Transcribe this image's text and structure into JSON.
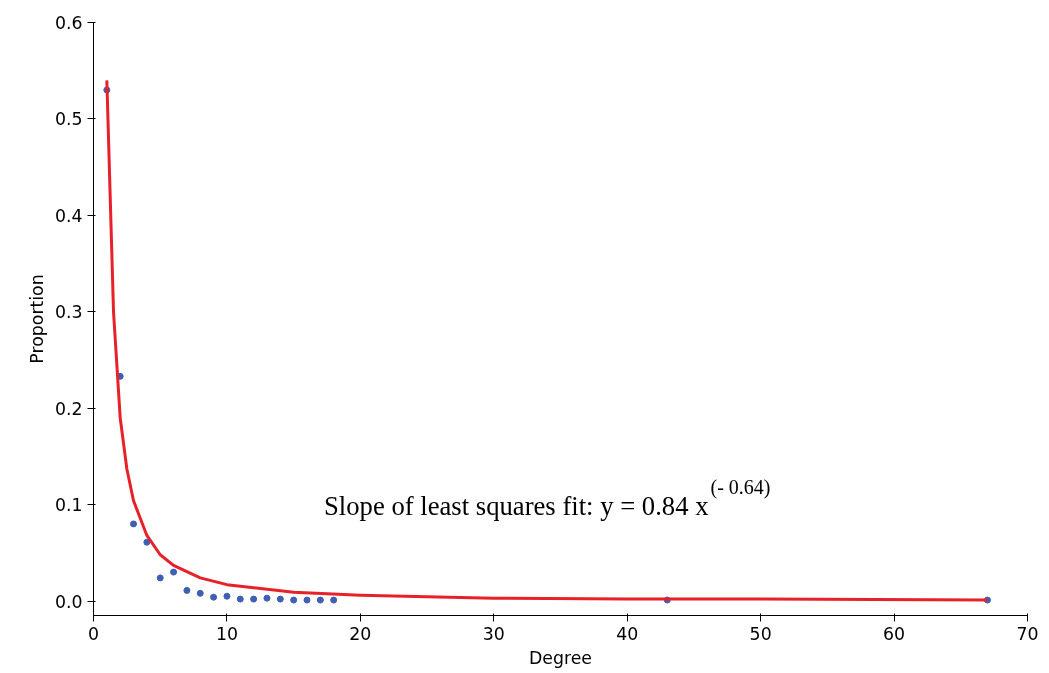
{
  "chart_data": {
    "type": "scatter",
    "xlabel": "Degree",
    "ylabel": "Proportion",
    "xlim": [
      0,
      70
    ],
    "ylim": [
      -0.015,
      0.6
    ],
    "xticks": [
      0,
      10,
      20,
      30,
      40,
      50,
      60,
      70
    ],
    "yticks": [
      {
        "value": 0,
        "label": "0.0"
      },
      {
        "value": 0.1,
        "label": "0.1"
      },
      {
        "value": 0.2,
        "label": "0.2"
      },
      {
        "value": 0.3,
        "label": "0.3"
      },
      {
        "value": 0.4,
        "label": "0.4"
      },
      {
        "value": 0.5,
        "label": "0.5"
      },
      {
        "value": 0.6,
        "label": "0.6"
      }
    ],
    "grid": false,
    "series": [
      {
        "color": "#3f5fb5",
        "marker": "circle",
        "x": [
          1,
          2,
          3,
          4,
          5,
          6,
          7,
          8,
          9,
          10,
          11,
          12,
          13,
          14,
          15,
          16,
          17,
          18,
          43,
          67
        ],
        "values": [
          0.53,
          0.233,
          0.08,
          0.061,
          0.024,
          0.03,
          0.011,
          0.008,
          0.004,
          0.005,
          0.002,
          0.002,
          0.003,
          0.002,
          0.001,
          0.001,
          0.001,
          0.001,
          0.001,
          0.001
        ]
      },
      {
        "type": "line",
        "color": "#e8202a",
        "line_style": "solid",
        "x": [
          1,
          1.5,
          2,
          2.5,
          3,
          4,
          5,
          6,
          8,
          10,
          15,
          20,
          30,
          40,
          50,
          67
        ],
        "values": [
          0.54,
          0.3,
          0.19,
          0.137,
          0.104,
          0.068,
          0.048,
          0.037,
          0.024,
          0.017,
          0.009,
          0.006,
          0.003,
          0.002,
          0.002,
          0.001
        ]
      }
    ],
    "annotations": [
      "Slope of least squares fit: y = 0.84 x$^{(- 0.64)}$"
    ]
  }
}
